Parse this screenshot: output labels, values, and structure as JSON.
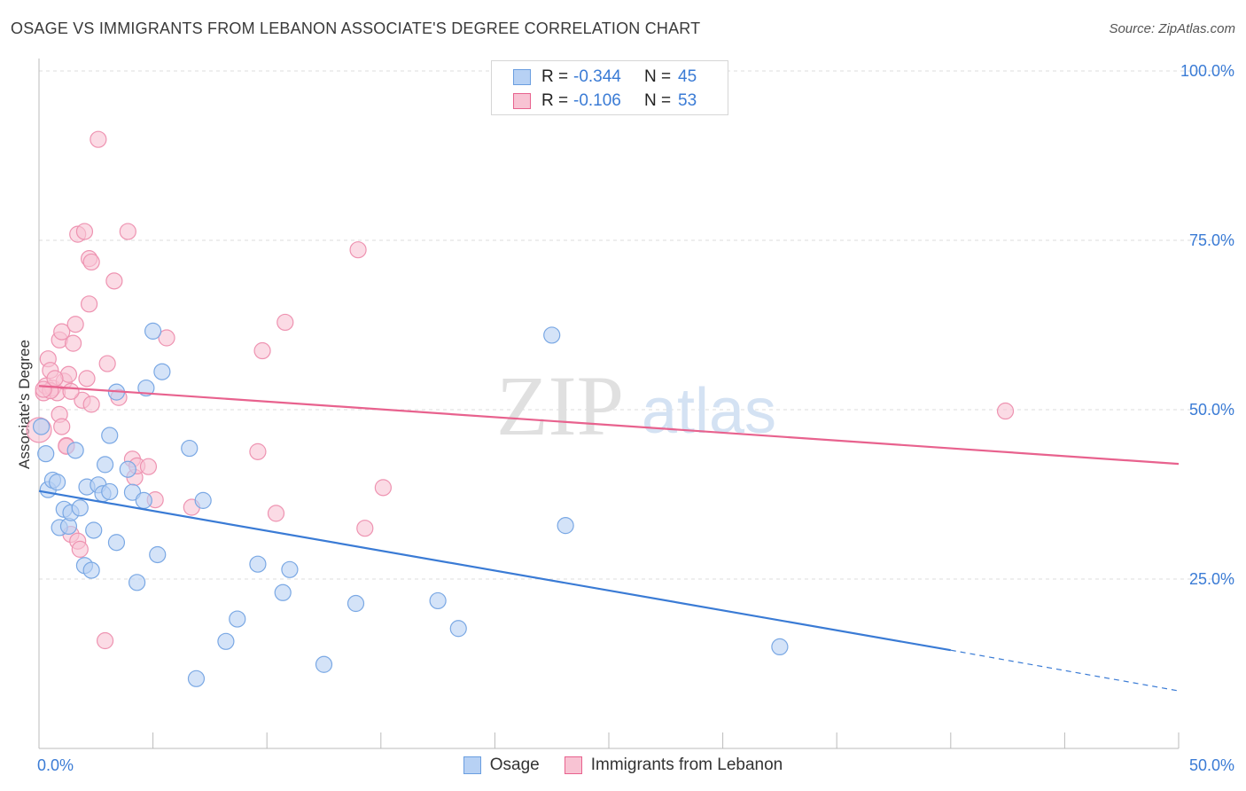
{
  "title": "OSAGE VS IMMIGRANTS FROM LEBANON ASSOCIATE'S DEGREE CORRELATION CHART",
  "source": "Source: ZipAtlas.com",
  "watermark": {
    "zip": "ZIP",
    "atlas": "atlas"
  },
  "legend": {
    "rows": [
      {
        "r_label": "R =",
        "r_value": "-0.344",
        "n_label": "N =",
        "n_value": "45"
      },
      {
        "r_label": "R =",
        "r_value": "-0.106",
        "n_label": "N =",
        "n_value": "53"
      }
    ]
  },
  "chart_data": {
    "type": "scatter",
    "title": "OSAGE VS IMMIGRANTS FROM LEBANON ASSOCIATE'S DEGREE CORRELATION CHART",
    "xlabel": "",
    "ylabel": "Associate's Degree",
    "xlim": [
      0,
      50
    ],
    "ylim": [
      0,
      100
    ],
    "x_tick_labels": [
      "0.0%",
      "50.0%"
    ],
    "y_ticks": [
      25,
      50,
      75,
      100
    ],
    "y_tick_labels": [
      "25.0%",
      "50.0%",
      "75.0%",
      "100.0%"
    ],
    "grid": true,
    "legend_position": "top-center",
    "colors": {
      "osage": "#3a7bd5",
      "osage_fill": "#b7d1f4",
      "lebanon": "#e8628e",
      "lebanon_fill": "#f8c3d3"
    },
    "series": [
      {
        "name": "Osage",
        "r": -0.344,
        "n": 45,
        "trend": {
          "x0": 0,
          "y0": 38.0,
          "x1": 40,
          "y1": 14.5,
          "dash_to_x": 50,
          "dash_to_y": 8.5
        },
        "points": [
          [
            0.3,
            43.5
          ],
          [
            0.4,
            38.2
          ],
          [
            0.6,
            39.6
          ],
          [
            0.8,
            39.3
          ],
          [
            0.9,
            32.6
          ],
          [
            1.1,
            35.3
          ],
          [
            1.3,
            32.8
          ],
          [
            1.4,
            34.8
          ],
          [
            1.6,
            44.0
          ],
          [
            1.8,
            35.5
          ],
          [
            2.0,
            27.0
          ],
          [
            2.1,
            38.6
          ],
          [
            2.3,
            26.3
          ],
          [
            2.4,
            32.2
          ],
          [
            2.6,
            38.9
          ],
          [
            2.8,
            37.6
          ],
          [
            2.9,
            41.9
          ],
          [
            3.1,
            37.9
          ],
          [
            3.1,
            46.2
          ],
          [
            3.4,
            30.4
          ],
          [
            3.4,
            52.6
          ],
          [
            3.9,
            41.2
          ],
          [
            4.1,
            37.8
          ],
          [
            4.3,
            24.5
          ],
          [
            4.6,
            36.6
          ],
          [
            4.7,
            53.2
          ],
          [
            5.0,
            61.6
          ],
          [
            5.2,
            28.6
          ],
          [
            5.4,
            55.6
          ],
          [
            6.6,
            44.3
          ],
          [
            6.9,
            10.3
          ],
          [
            7.2,
            36.6
          ],
          [
            8.2,
            15.8
          ],
          [
            8.7,
            19.1
          ],
          [
            9.6,
            27.2
          ],
          [
            10.7,
            23.0
          ],
          [
            11.0,
            26.4
          ],
          [
            12.5,
            12.4
          ],
          [
            13.9,
            21.4
          ],
          [
            17.5,
            21.8
          ],
          [
            18.4,
            17.7
          ],
          [
            22.5,
            61.0
          ],
          [
            23.1,
            32.9
          ],
          [
            32.5,
            15.0
          ],
          [
            0.1,
            47.5
          ]
        ]
      },
      {
        "name": "Immigrants from Lebanon",
        "r": -0.106,
        "n": 53,
        "trend": {
          "x0": 0,
          "y0": 53.5,
          "x1": 50,
          "y1": 42.0
        },
        "points": [
          [
            0.0,
            47.0
          ],
          [
            0.2,
            52.5
          ],
          [
            0.3,
            53.5
          ],
          [
            0.4,
            57.5
          ],
          [
            0.5,
            55.8
          ],
          [
            0.6,
            53.2
          ],
          [
            0.8,
            52.5
          ],
          [
            0.9,
            49.3
          ],
          [
            0.9,
            60.3
          ],
          [
            1.0,
            47.5
          ],
          [
            1.0,
            61.5
          ],
          [
            1.1,
            54.2
          ],
          [
            1.2,
            44.7
          ],
          [
            1.3,
            55.2
          ],
          [
            1.4,
            31.6
          ],
          [
            1.5,
            59.8
          ],
          [
            1.6,
            62.6
          ],
          [
            1.7,
            75.9
          ],
          [
            1.7,
            30.6
          ],
          [
            1.8,
            29.4
          ],
          [
            1.9,
            51.4
          ],
          [
            2.0,
            76.3
          ],
          [
            2.1,
            54.6
          ],
          [
            2.2,
            65.6
          ],
          [
            2.2,
            72.3
          ],
          [
            2.3,
            71.8
          ],
          [
            2.3,
            50.8
          ],
          [
            2.6,
            89.9
          ],
          [
            2.9,
            15.9
          ],
          [
            3.0,
            56.8
          ],
          [
            3.3,
            69.0
          ],
          [
            3.5,
            51.8
          ],
          [
            3.9,
            76.3
          ],
          [
            4.1,
            42.7
          ],
          [
            4.2,
            40.0
          ],
          [
            4.3,
            41.7
          ],
          [
            4.8,
            41.6
          ],
          [
            5.1,
            36.7
          ],
          [
            5.6,
            60.6
          ],
          [
            6.7,
            35.6
          ],
          [
            9.6,
            43.8
          ],
          [
            9.8,
            58.7
          ],
          [
            10.4,
            34.7
          ],
          [
            10.8,
            62.9
          ],
          [
            14.0,
            73.6
          ],
          [
            14.3,
            32.5
          ],
          [
            15.1,
            38.5
          ],
          [
            42.4,
            49.8
          ],
          [
            0.5,
            52.8
          ],
          [
            0.7,
            54.6
          ],
          [
            1.2,
            44.6
          ],
          [
            0.2,
            53.0
          ],
          [
            1.4,
            52.7
          ]
        ]
      }
    ]
  }
}
